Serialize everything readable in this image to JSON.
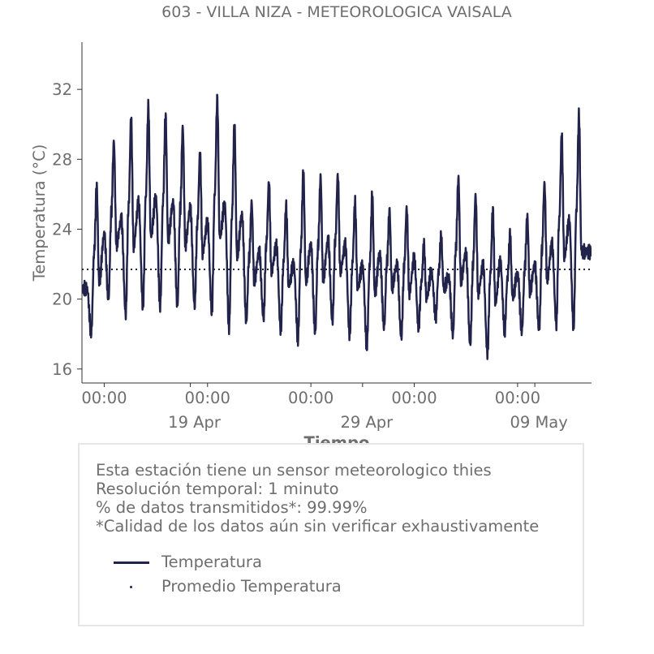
{
  "chart_data": {
    "type": "line",
    "title": "603 - VILLA NIZA - METEOROLOGICA VAISALA",
    "xlabel": "Tiempo",
    "ylabel": "Temperatura (°C)",
    "ylim": [
      15.2,
      34.7
    ],
    "yticks": [
      16,
      20,
      24,
      28,
      32
    ],
    "xlim": [
      "2021-04-12T17:00",
      "2021-05-12T07:00"
    ],
    "xticks_time": [
      {
        "x": "2021-04-14T00:00",
        "label": "00:00"
      },
      {
        "x": "2021-04-20T00:00",
        "label": "00:00"
      },
      {
        "x": "2021-04-26T00:00",
        "label": "00:00"
      },
      {
        "x": "2021-05-02T00:00",
        "label": "00:00"
      },
      {
        "x": "2021-05-08T00:00",
        "label": "00:00"
      }
    ],
    "xticks_date": [
      {
        "x": "2021-04-19T00:00",
        "label": "19 Apr"
      },
      {
        "x": "2021-04-29T00:00",
        "label": "29 Apr"
      },
      {
        "x": "2021-05-09T00:00",
        "label": "09 May"
      }
    ],
    "grid": false,
    "series": [
      {
        "name": "Temperatura",
        "color": "#22234a",
        "style": "solid",
        "daily": [
          {
            "date": "2021-04-13",
            "max": 26.4,
            "min": 18.1
          },
          {
            "date": "2021-04-14",
            "max": 29.0,
            "min": 20.0
          },
          {
            "date": "2021-04-15",
            "max": 30.4,
            "min": 19.1
          },
          {
            "date": "2021-04-16",
            "max": 31.0,
            "min": 19.6
          },
          {
            "date": "2021-04-17",
            "max": 30.5,
            "min": 19.6
          },
          {
            "date": "2021-04-18",
            "max": 29.8,
            "min": 19.6
          },
          {
            "date": "2021-04-19",
            "max": 28.4,
            "min": 19.6
          },
          {
            "date": "2021-04-20",
            "max": 31.4,
            "min": 19.3
          },
          {
            "date": "2021-04-21",
            "max": 30.0,
            "min": 18.4
          },
          {
            "date": "2021-04-22",
            "max": 25.5,
            "min": 18.7
          },
          {
            "date": "2021-04-23",
            "max": 26.7,
            "min": 18.9
          },
          {
            "date": "2021-04-24",
            "max": 25.3,
            "min": 18.3
          },
          {
            "date": "2021-04-25",
            "max": 27.2,
            "min": 17.7
          },
          {
            "date": "2021-04-26",
            "max": 27.0,
            "min": 18.1
          },
          {
            "date": "2021-04-27",
            "max": 27.1,
            "min": 18.7
          },
          {
            "date": "2021-04-28",
            "max": 25.5,
            "min": 18.0
          },
          {
            "date": "2021-04-29",
            "max": 25.9,
            "min": 17.3
          },
          {
            "date": "2021-04-30",
            "max": 25.1,
            "min": 18.4
          },
          {
            "date": "2021-05-01",
            "max": 25.2,
            "min": 17.8
          },
          {
            "date": "2021-05-02",
            "max": 23.1,
            "min": 18.4
          },
          {
            "date": "2021-05-03",
            "max": 23.6,
            "min": 19.0
          },
          {
            "date": "2021-05-04",
            "max": 26.9,
            "min": 18.0
          },
          {
            "date": "2021-05-05",
            "max": 25.9,
            "min": 17.4
          },
          {
            "date": "2021-05-06",
            "max": 25.1,
            "min": 16.9
          },
          {
            "date": "2021-05-07",
            "max": 23.7,
            "min": 18.2
          },
          {
            "date": "2021-05-08",
            "max": 24.7,
            "min": 18.2
          },
          {
            "date": "2021-05-09",
            "max": 26.6,
            "min": 18.2
          },
          {
            "date": "2021-05-10",
            "max": 29.4,
            "min": 18.6
          },
          {
            "date": "2021-05-11",
            "max": 30.5,
            "min": 18.5
          }
        ]
      },
      {
        "name": "Promedio Temperatura",
        "color": "#22234a",
        "style": "dotted",
        "value": 21.7
      }
    ]
  },
  "info": {
    "lines": [
      "Esta estación tiene un sensor meteorologico thies",
      "Resolución temporal: 1 minuto",
      "% de datos transmitidos*: 99.99%",
      "*Calidad de los datos aún sin verificar exhaustivamente"
    ]
  },
  "legend": {
    "items": [
      "Temperatura",
      "Promedio Temperatura"
    ]
  }
}
